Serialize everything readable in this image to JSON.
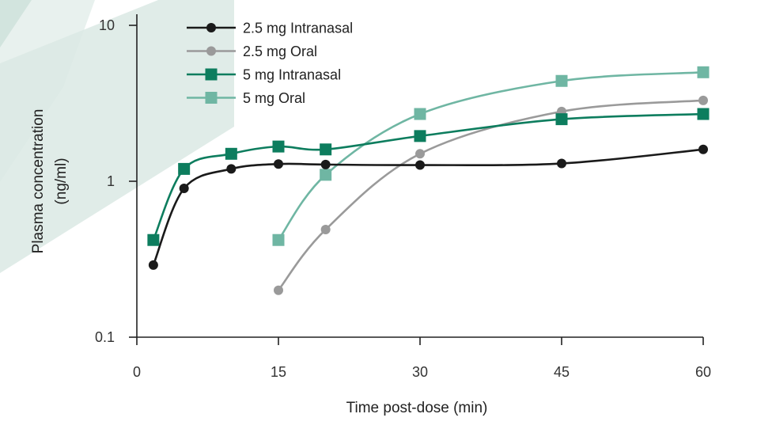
{
  "chart_data": {
    "type": "line",
    "xlabel": "Time post-dose (min)",
    "ylabel_lines": [
      "Plasma concentration",
      "(ng/ml)"
    ],
    "x_scale": "linear",
    "y_scale": "log",
    "xlim": [
      0,
      60
    ],
    "ylim": [
      0.1,
      10
    ],
    "x_ticks": [
      0,
      15,
      30,
      45,
      60
    ],
    "x_tick_labels": [
      "0",
      "15",
      "30",
      "45",
      "60"
    ],
    "y_ticks": [
      0.1,
      1,
      10
    ],
    "y_tick_labels": [
      "0.1",
      "1",
      "10"
    ],
    "grid": false,
    "legend_position": "top-left",
    "series": [
      {
        "name": "2.5 mg Intranasal",
        "color": "#1a1a1a",
        "marker": "circle",
        "x": [
          1.75,
          5,
          10,
          15,
          20,
          30,
          45,
          60
        ],
        "y": [
          0.29,
          0.9,
          1.2,
          1.29,
          1.28,
          1.27,
          1.3,
          1.6
        ]
      },
      {
        "name": "2.5 mg Oral",
        "color": "#9a9a9a",
        "marker": "circle",
        "x": [
          15,
          20,
          30,
          45,
          60
        ],
        "y": [
          0.2,
          0.49,
          1.5,
          2.8,
          3.3
        ]
      },
      {
        "name": "5 mg Intranasal",
        "color": "#0d7d5e",
        "marker": "square",
        "x": [
          1.75,
          5,
          10,
          15,
          20,
          30,
          45,
          60
        ],
        "y": [
          0.42,
          1.2,
          1.5,
          1.67,
          1.6,
          1.95,
          2.5,
          2.7
        ]
      },
      {
        "name": "5 mg Oral",
        "color": "#6fb6a3",
        "marker": "square",
        "x": [
          15,
          20,
          30,
          45,
          60
        ],
        "y": [
          0.42,
          1.1,
          2.7,
          4.4,
          5.0
        ]
      }
    ]
  }
}
